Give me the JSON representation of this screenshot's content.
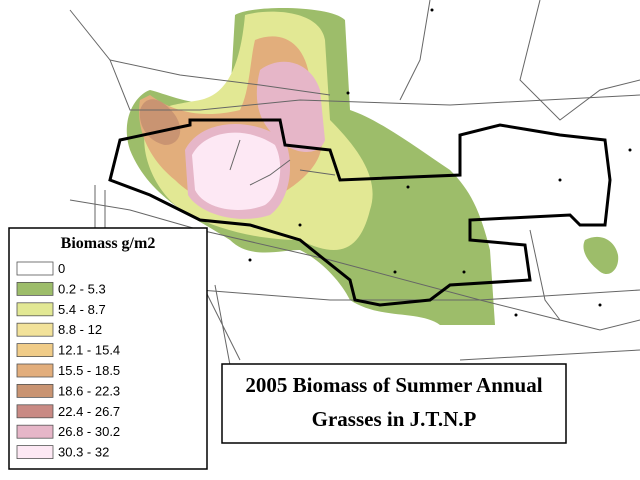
{
  "legend": {
    "title": "Biomass g/m2",
    "items": [
      {
        "label": "0",
        "color": "#ffffff"
      },
      {
        "label": "0.2 - 5.3",
        "color": "#9dbd6a"
      },
      {
        "label": "5.4 - 8.7",
        "color": "#e2e894"
      },
      {
        "label": "8.8 - 12",
        "color": "#f2e29a"
      },
      {
        "label": "12.1 - 15.4",
        "color": "#f0cc88"
      },
      {
        "label": "15.5 - 18.5",
        "color": "#e2ae7c"
      },
      {
        "label": "18.6 - 22.3",
        "color": "#c99472"
      },
      {
        "label": "22.4 - 26.7",
        "color": "#c98a84"
      },
      {
        "label": "26.8 - 30.2",
        "color": "#e6b6c8"
      },
      {
        "label": "30.3 - 32",
        "color": "#fde8f4"
      }
    ]
  },
  "map_title": {
    "lines": [
      "2005 Biomass of Summer Annual",
      "Grasses in J.T.N.P"
    ]
  }
}
